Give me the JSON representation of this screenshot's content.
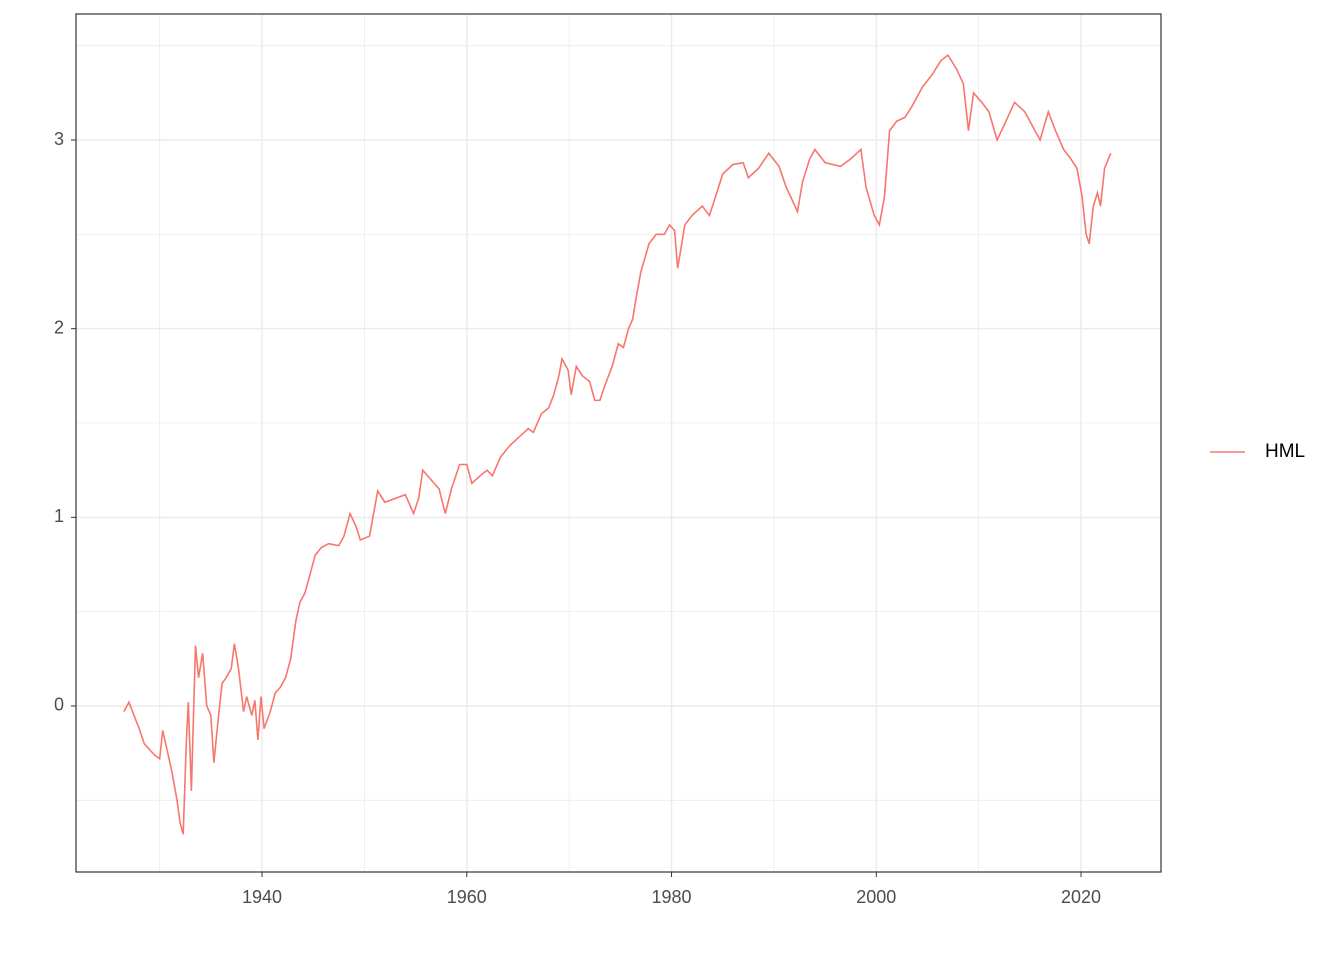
{
  "chart_data": {
    "type": "line",
    "x": [
      1926.5,
      1927,
      1927.5,
      1928,
      1928.5,
      1929,
      1929.5,
      1930,
      1930.3,
      1930.8,
      1931.2,
      1931.7,
      1932,
      1932.3,
      1932.6,
      1932.8,
      1933.1,
      1933.5,
      1933.8,
      1934.2,
      1934.6,
      1935,
      1935.3,
      1935.7,
      1936.1,
      1936.5,
      1937,
      1937.3,
      1937.7,
      1938.2,
      1938.5,
      1939,
      1939.3,
      1939.6,
      1939.9,
      1940.2,
      1940.8,
      1941.3,
      1941.8,
      1942.3,
      1942.8,
      1943.3,
      1943.7,
      1944.2,
      1944.7,
      1945.2,
      1945.8,
      1946.5,
      1947.5,
      1948,
      1948.6,
      1949.2,
      1949.6,
      1950.5,
      1951,
      1951.3,
      1952,
      1953,
      1954,
      1954.8,
      1955.3,
      1955.7,
      1956.5,
      1957.3,
      1957.9,
      1958.5,
      1959.3,
      1960,
      1960.5,
      1961.3,
      1962,
      1962.5,
      1963.3,
      1964.2,
      1965,
      1966,
      1966.5,
      1967.3,
      1968,
      1968.5,
      1969,
      1969.3,
      1969.9,
      1970.2,
      1970.7,
      1971.3,
      1972,
      1972.5,
      1973,
      1973.5,
      1974.2,
      1974.8,
      1975.3,
      1975.8,
      1976.2,
      1976.5,
      1977,
      1977.8,
      1978.5,
      1979.3,
      1979.8,
      1980.3,
      1980.6,
      1981.3,
      1982,
      1983,
      1983.7,
      1984.3,
      1985,
      1986,
      1987,
      1987.5,
      1988.5,
      1989.5,
      1990.5,
      1991.2,
      1991.8,
      1992.3,
      1992.8,
      1993.5,
      1994,
      1995,
      1996.5,
      1997.5,
      1998.5,
      1999,
      1999.8,
      2000.3,
      2000.8,
      2001.3,
      2002,
      2002.8,
      2003.5,
      2004.5,
      2005.5,
      2006.3,
      2007,
      2007.8,
      2008.5,
      2009,
      2009.5,
      2010.3,
      2011,
      2011.8,
      2012.5,
      2013.5,
      2014.5,
      2015.5,
      2016,
      2016.8,
      2017.5,
      2018.3,
      2019,
      2019.6,
      2020.1,
      2020.5,
      2020.8,
      2021.2,
      2021.6,
      2021.9,
      2022.3,
      2022.9
    ],
    "series": [
      {
        "name": "HML",
        "color": "#F8766D",
        "values": [
          -0.03,
          0.02,
          -0.05,
          -0.12,
          -0.2,
          -0.23,
          -0.26,
          -0.28,
          -0.13,
          -0.25,
          -0.35,
          -0.5,
          -0.62,
          -0.68,
          -0.2,
          0.02,
          -0.45,
          0.32,
          0.15,
          0.28,
          0.0,
          -0.05,
          -0.3,
          -0.08,
          0.12,
          0.15,
          0.2,
          0.33,
          0.2,
          -0.03,
          0.05,
          -0.05,
          0.03,
          -0.18,
          0.05,
          -0.12,
          -0.03,
          0.07,
          0.1,
          0.15,
          0.25,
          0.45,
          0.55,
          0.6,
          0.7,
          0.8,
          0.84,
          0.86,
          0.85,
          0.9,
          1.02,
          0.95,
          0.88,
          0.9,
          1.05,
          1.14,
          1.08,
          1.1,
          1.12,
          1.02,
          1.1,
          1.25,
          1.2,
          1.15,
          1.02,
          1.15,
          1.28,
          1.28,
          1.18,
          1.22,
          1.25,
          1.22,
          1.32,
          1.38,
          1.42,
          1.47,
          1.45,
          1.55,
          1.58,
          1.65,
          1.75,
          1.84,
          1.78,
          1.65,
          1.8,
          1.75,
          1.72,
          1.62,
          1.62,
          1.7,
          1.8,
          1.92,
          1.9,
          2.0,
          2.05,
          2.15,
          2.3,
          2.45,
          2.5,
          2.5,
          2.55,
          2.52,
          2.32,
          2.55,
          2.6,
          2.65,
          2.6,
          2.7,
          2.82,
          2.87,
          2.88,
          2.8,
          2.85,
          2.93,
          2.86,
          2.75,
          2.68,
          2.62,
          2.78,
          2.9,
          2.95,
          2.88,
          2.86,
          2.9,
          2.95,
          2.75,
          2.6,
          2.55,
          2.7,
          3.05,
          3.1,
          3.12,
          3.18,
          3.28,
          3.35,
          3.42,
          3.45,
          3.38,
          3.3,
          3.05,
          3.25,
          3.2,
          3.15,
          3.0,
          3.08,
          3.2,
          3.15,
          3.05,
          3.0,
          3.15,
          3.05,
          2.95,
          2.9,
          2.85,
          2.7,
          2.5,
          2.45,
          2.65,
          2.72,
          2.65,
          2.85,
          2.93
        ]
      }
    ],
    "xlim": [
      1921.83,
      2027.81
    ],
    "xticks": [
      1940,
      1960,
      1980,
      2000,
      2020
    ],
    "ylim": [
      -0.88,
      3.668
    ],
    "yticks": [
      0,
      1,
      2,
      3
    ],
    "grid": true
  }
}
